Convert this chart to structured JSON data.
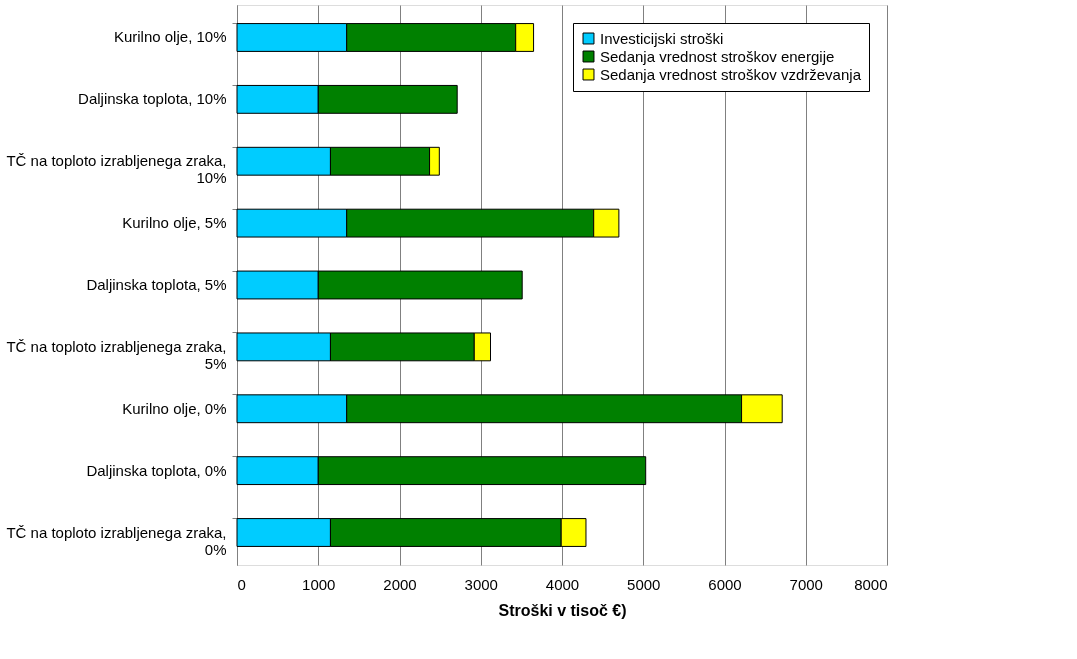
{
  "chart_data": {
    "type": "bar",
    "orientation": "horizontal",
    "stacked": true,
    "xlabel": "Stroški  v tisoč €)",
    "categories": [
      "Kurilno olje, 10%",
      "Daljinska toplota, 10%",
      "TČ na toploto izrabljenega zraka, 10%",
      "Kurilno olje, 5%",
      "Daljinska toplota, 5%",
      "TČ na toploto izrabljenega zraka, 5%",
      "Kurilno olje, 0%",
      "Daljinska toplota, 0%",
      "TČ na toploto izrabljenega zraka, 0%"
    ],
    "series": [
      {
        "name": "Investicijski stroški",
        "color": "#00ccff",
        "values": [
          1350,
          1000,
          1150,
          1350,
          1000,
          1150,
          1350,
          1000,
          1150
        ]
      },
      {
        "name": "Sedanja vrednost stroškov energije",
        "color": "#008000",
        "values": [
          2080,
          1710,
          1220,
          3040,
          2510,
          1770,
          4860,
          4030,
          2840
        ]
      },
      {
        "name": "Sedanja vrednost stroškov vzdrževanja",
        "color": "#ffff00",
        "values": [
          220,
          null,
          120,
          310,
          null,
          200,
          500,
          null,
          305
        ]
      }
    ],
    "xlim": [
      0,
      8000
    ],
    "xticks": [
      0,
      1000,
      2000,
      3000,
      4000,
      5000,
      6000,
      7000,
      8000
    ],
    "grid": "x",
    "legend": "top right"
  }
}
